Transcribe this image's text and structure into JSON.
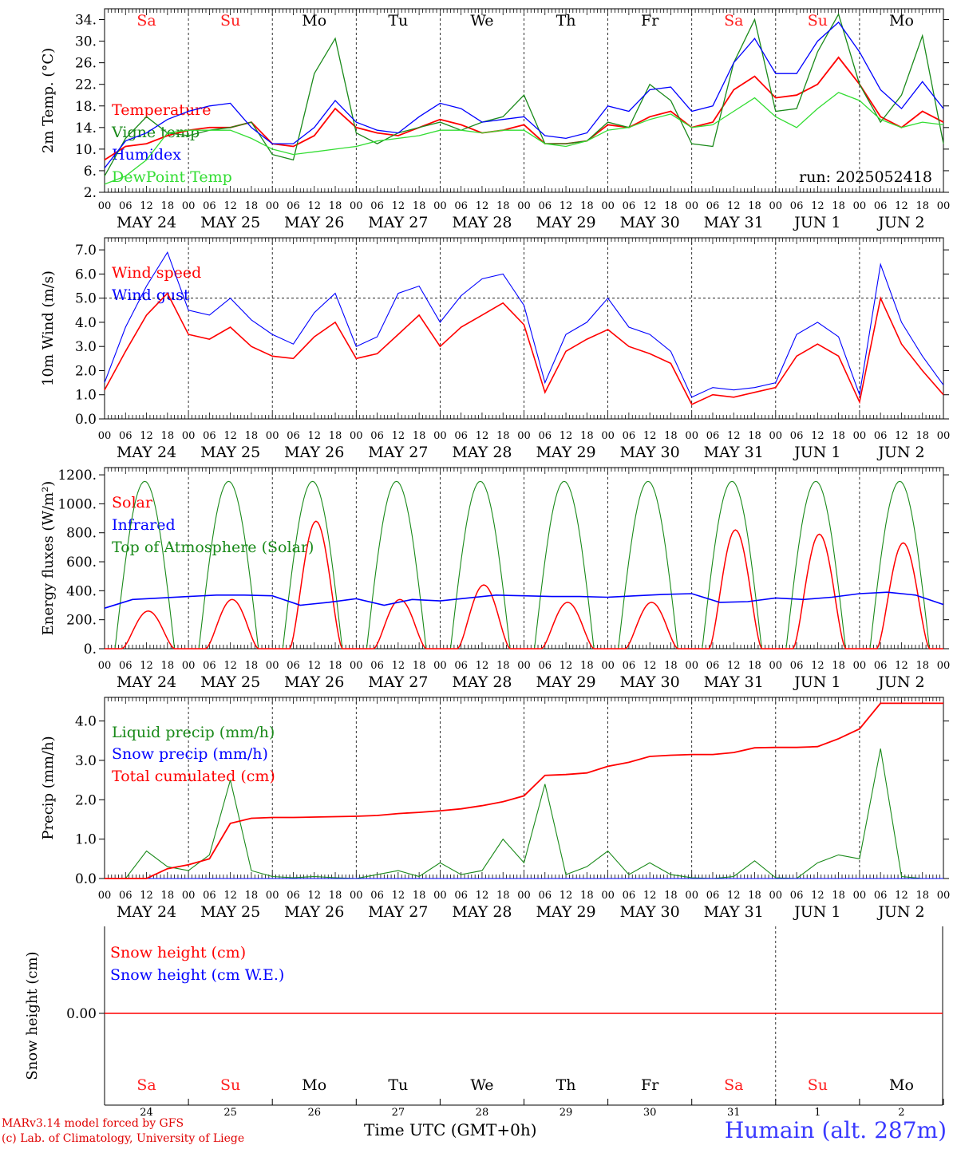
{
  "run_label": "run: 2025052418",
  "footer": {
    "model": "MARv3.14 model forced by GFS",
    "credit": "(c) Lab. of Climatology, University of Liege",
    "time_label": "Time UTC (GMT+0h)",
    "station": "Humain (alt. 287m)"
  },
  "colors": {
    "red": "#ff0000",
    "green": "#1a8a1a",
    "blue": "#0000ff",
    "lightgreen": "#33dd33",
    "weekend": "#ff2020",
    "weekday": "#000000"
  },
  "days": [
    {
      "abbr": "Sa",
      "weekend": true,
      "date": "MAY 24",
      "num": "24"
    },
    {
      "abbr": "Su",
      "weekend": true,
      "date": "MAY 25",
      "num": "25"
    },
    {
      "abbr": "Mo",
      "weekend": false,
      "date": "MAY 26",
      "num": "26"
    },
    {
      "abbr": "Tu",
      "weekend": false,
      "date": "MAY 27",
      "num": "27"
    },
    {
      "abbr": "We",
      "weekend": false,
      "date": "MAY 28",
      "num": "28"
    },
    {
      "abbr": "Th",
      "weekend": false,
      "date": "MAY 29",
      "num": "29"
    },
    {
      "abbr": "Fr",
      "weekend": false,
      "date": "MAY 30",
      "num": "30"
    },
    {
      "abbr": "Sa",
      "weekend": true,
      "date": "MAY 31",
      "num": "31"
    },
    {
      "abbr": "Su",
      "weekend": true,
      "date": "JUN  1",
      "num": "1"
    },
    {
      "abbr": "Mo",
      "weekend": false,
      "date": "JUN  2",
      "num": "2"
    }
  ],
  "hour_ticks": [
    "00",
    "06",
    "12",
    "18"
  ],
  "hour_end": "00",
  "chart_data": [
    {
      "type": "line",
      "id": "temperature",
      "ylabel": "2m Temp. (°C)",
      "ylim": [
        2,
        36
      ],
      "yticks": [
        "2.",
        "6.",
        "10.",
        "14.",
        "18.",
        "22.",
        "26.",
        "30.",
        "34."
      ],
      "ytick_values": [
        2,
        6,
        10,
        14,
        18,
        22,
        26,
        30,
        34
      ],
      "x_hours_from_start": [
        0,
        6,
        12,
        18,
        24,
        30,
        36,
        42,
        48,
        54,
        60,
        66,
        72,
        78,
        84,
        90,
        96,
        102,
        108,
        114,
        120,
        126,
        132,
        138,
        144,
        150,
        156,
        162,
        168,
        174,
        180,
        186,
        192,
        198,
        204,
        210,
        216,
        222,
        228,
        234,
        240
      ],
      "series": [
        {
          "name": "Temperature",
          "color": "red",
          "values": [
            8,
            10.5,
            11,
            12.5,
            13.5,
            14,
            14,
            15,
            11,
            10.5,
            12.5,
            17.5,
            14,
            13,
            12.5,
            14,
            15.5,
            14.5,
            13,
            13.5,
            14.5,
            11,
            11,
            11.5,
            14.5,
            14,
            16,
            17,
            14,
            15,
            21,
            23.5,
            19.5,
            20,
            22,
            27,
            22,
            16,
            14,
            17,
            15
          ]
        },
        {
          "name": "Vigne temp",
          "color": "green",
          "values": [
            5,
            12,
            16,
            13,
            12.5,
            13.5,
            14,
            15,
            9,
            8,
            24,
            30.5,
            13,
            11,
            13,
            14,
            15,
            13.5,
            15,
            16,
            20,
            11,
            11,
            11.5,
            15,
            14,
            22,
            19,
            11,
            10.5,
            26,
            34,
            17,
            17.5,
            28,
            35,
            22,
            15,
            20,
            31,
            11
          ]
        },
        {
          "name": "Humidex",
          "color": "blue",
          "values": [
            6.5,
            11.5,
            13,
            15.5,
            17,
            18,
            18.5,
            14,
            11,
            11,
            14,
            19,
            15,
            13.5,
            13,
            16,
            18.5,
            17.5,
            15,
            15.5,
            16,
            12.5,
            12,
            13,
            18,
            17,
            21,
            21.5,
            17,
            18,
            26,
            30.5,
            24,
            24,
            30,
            33.5,
            28,
            21,
            17.5,
            22.5,
            17.5
          ]
        },
        {
          "name": "DewPoint Temp",
          "color": "lightgreen",
          "values": [
            3.5,
            5,
            8,
            13,
            13.5,
            13.5,
            13.5,
            12,
            10,
            9,
            9.5,
            10,
            10.5,
            11.5,
            12,
            12.5,
            13.5,
            13.5,
            13,
            13.5,
            13.5,
            11,
            10.5,
            11.5,
            13.5,
            14,
            15.5,
            16.5,
            14,
            14.5,
            17,
            19.5,
            16,
            14,
            17.5,
            20.5,
            19,
            15.5,
            14,
            15,
            14.5
          ]
        }
      ]
    },
    {
      "type": "line",
      "id": "wind",
      "ylabel": "10m Wind (m/s)",
      "ylim": [
        0,
        7.5
      ],
      "yticks": [
        "0.0",
        "1.0",
        "2.0",
        "3.0",
        "4.0",
        "5.0",
        "6.0",
        "7.0"
      ],
      "ytick_values": [
        0,
        1,
        2,
        3,
        4,
        5,
        6,
        7
      ],
      "reference_line": 5.0,
      "x_hours_from_start": [
        0,
        6,
        12,
        18,
        24,
        30,
        36,
        42,
        48,
        54,
        60,
        66,
        72,
        78,
        84,
        90,
        96,
        102,
        108,
        114,
        120,
        126,
        132,
        138,
        144,
        150,
        156,
        162,
        168,
        174,
        180,
        186,
        192,
        198,
        204,
        210,
        216,
        222,
        228,
        234,
        240
      ],
      "series": [
        {
          "name": "Wind speed",
          "color": "red",
          "values": [
            1.2,
            2.8,
            4.3,
            5.2,
            3.5,
            3.3,
            3.8,
            3.0,
            2.6,
            2.5,
            3.4,
            4.0,
            2.5,
            2.7,
            3.5,
            4.3,
            3.0,
            3.8,
            4.3,
            4.8,
            3.9,
            1.1,
            2.8,
            3.3,
            3.7,
            3.0,
            2.7,
            2.3,
            0.6,
            1.0,
            0.9,
            1.1,
            1.3,
            2.6,
            3.1,
            2.6,
            0.7,
            5.0,
            3.1,
            2.0,
            1.0
          ]
        },
        {
          "name": "Wind gust",
          "color": "blue",
          "values": [
            1.5,
            3.8,
            5.5,
            6.9,
            4.5,
            4.3,
            5.0,
            4.1,
            3.5,
            3.1,
            4.4,
            5.2,
            3.0,
            3.4,
            5.2,
            5.5,
            4.0,
            5.1,
            5.8,
            6.0,
            4.7,
            1.5,
            3.5,
            4.0,
            5.0,
            3.8,
            3.5,
            2.8,
            0.9,
            1.3,
            1.2,
            1.3,
            1.5,
            3.5,
            4.0,
            3.4,
            1.0,
            6.4,
            4.0,
            2.6,
            1.4
          ]
        }
      ]
    },
    {
      "type": "line",
      "id": "energy",
      "ylabel": "Energy fluxes (W/m²)",
      "ylim": [
        0,
        1250
      ],
      "yticks": [
        "0.",
        "200.",
        "400.",
        "600.",
        "800.",
        "1000.",
        "1200."
      ],
      "ytick_values": [
        0,
        200,
        400,
        600,
        800,
        1000,
        1200
      ],
      "toa_peak": 1155,
      "solar_peaks": [
        260,
        340,
        880,
        340,
        440,
        320,
        320,
        820,
        790,
        730
      ],
      "series": [
        {
          "name": "Solar",
          "color": "red"
        },
        {
          "name": "Infrared",
          "color": "blue",
          "values": [
            280,
            340,
            350,
            360,
            370,
            370,
            365,
            300,
            320,
            345,
            300,
            340,
            330,
            350,
            370,
            365,
            360,
            360,
            355,
            365,
            375,
            380,
            320,
            325,
            350,
            340,
            355,
            380,
            390,
            370,
            305
          ]
        },
        {
          "name": "Top of Atmosphere (Solar)",
          "color": "green"
        }
      ]
    },
    {
      "type": "line",
      "id": "precip",
      "ylabel": "Precip (mm/h)",
      "ylim": [
        0,
        4.6
      ],
      "yticks": [
        "0.0",
        "1.0",
        "2.0",
        "3.0",
        "4.0"
      ],
      "ytick_values": [
        0,
        1,
        2,
        3,
        4
      ],
      "x_hours_from_start": [
        0,
        6,
        12,
        18,
        24,
        30,
        36,
        42,
        48,
        54,
        60,
        66,
        72,
        78,
        84,
        90,
        96,
        102,
        108,
        114,
        120,
        126,
        132,
        138,
        144,
        150,
        156,
        162,
        168,
        174,
        180,
        186,
        192,
        198,
        204,
        210,
        216,
        222,
        228,
        234,
        240
      ],
      "series": [
        {
          "name": "Liquid precip (mm/h)",
          "color": "green",
          "values": [
            0,
            0,
            0.7,
            0.3,
            0.2,
            0.6,
            2.5,
            0.2,
            0.05,
            0.02,
            0.05,
            0.02,
            0,
            0.1,
            0.2,
            0.05,
            0.4,
            0.1,
            0.2,
            1.0,
            0.4,
            2.4,
            0.1,
            0.3,
            0.7,
            0.1,
            0.4,
            0.1,
            0.02,
            0,
            0.05,
            0.45,
            0.02,
            0,
            0.4,
            0.6,
            0.5,
            3.3,
            0.05,
            0,
            0
          ]
        },
        {
          "name": "Snow precip (mm/h)",
          "color": "blue",
          "values": [
            0,
            0,
            0,
            0,
            0,
            0,
            0,
            0,
            0,
            0,
            0,
            0,
            0,
            0,
            0,
            0,
            0,
            0,
            0,
            0,
            0,
            0,
            0,
            0,
            0,
            0,
            0,
            0,
            0,
            0,
            0,
            0,
            0,
            0,
            0,
            0,
            0,
            0,
            0,
            0,
            0
          ]
        },
        {
          "name": "Total cumulated (cm)",
          "color": "red",
          "values": [
            0,
            0,
            0,
            0.25,
            0.35,
            0.5,
            1.4,
            1.53,
            1.55,
            1.55,
            1.56,
            1.57,
            1.58,
            1.6,
            1.65,
            1.68,
            1.72,
            1.77,
            1.85,
            1.95,
            2.1,
            2.62,
            2.64,
            2.68,
            2.85,
            2.95,
            3.1,
            3.13,
            3.15,
            3.15,
            3.2,
            3.32,
            3.33,
            3.33,
            3.35,
            3.55,
            3.8,
            4.45,
            4.45,
            4.45,
            4.45
          ]
        }
      ]
    },
    {
      "type": "line",
      "id": "snow",
      "ylabel": "Snow height (cm)",
      "yticks": [
        "0.00"
      ],
      "ytick_values": [
        0
      ],
      "series": [
        {
          "name": "Snow height (cm)",
          "color": "red",
          "values": [
            0,
            0
          ]
        },
        {
          "name": "Snow height (cm W.E.)",
          "color": "blue",
          "values": [
            0,
            0
          ]
        }
      ]
    }
  ]
}
